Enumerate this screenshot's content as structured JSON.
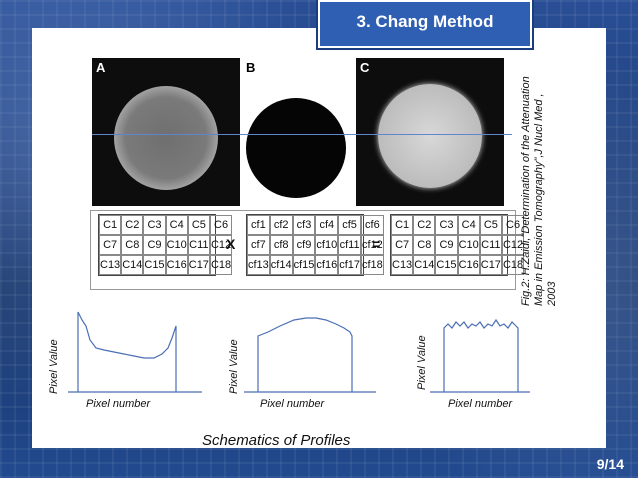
{
  "slide": {
    "title": "3. Chang Method",
    "page": "9/14",
    "schematic_caption": "Schematics of Profiles"
  },
  "images": {
    "a_label": "A",
    "b_label": "B",
    "c_label": "C"
  },
  "operators": {
    "times": "X",
    "equals": "="
  },
  "matrix_c": [
    [
      "C1",
      "C2",
      "C3",
      "C4",
      "C5",
      "C6"
    ],
    [
      "C7",
      "C8",
      "C9",
      "C10",
      "C11",
      "C12"
    ],
    [
      "C13",
      "C14",
      "C15",
      "C16",
      "C17",
      "C18"
    ]
  ],
  "matrix_cf": [
    [
      "cf1",
      "cf2",
      "cf3",
      "cf4",
      "cf5",
      "cf6"
    ],
    [
      "cf7",
      "cf8",
      "cf9",
      "cf10",
      "cf11",
      "cf12"
    ],
    [
      "cf13",
      "cf14",
      "cf15",
      "cf16",
      "cf17",
      "cf18"
    ]
  ],
  "figure_caption": "Fig.2: H.Zaidi,\"Determination of the Attenuation Map in Emission Tomography\",J Nucl Med , 2003",
  "profiles": [
    {
      "ylabel": "Pixel Value",
      "xlabel": "Pixel number"
    },
    {
      "ylabel": "Pixel Value",
      "xlabel": "Pixel number"
    },
    {
      "ylabel": "Pixel Value",
      "xlabel": "Pixel number"
    }
  ]
}
